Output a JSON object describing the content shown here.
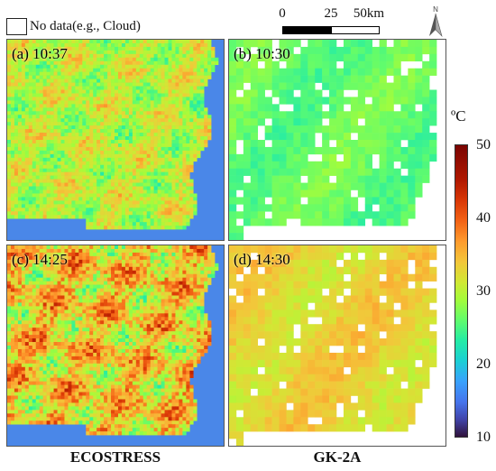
{
  "legend": {
    "nodata_label": "No data(e.g., Cloud)"
  },
  "scale_bar": {
    "labels": [
      "0",
      "25",
      "50km"
    ]
  },
  "panels": [
    {
      "label": "(a) 10:37",
      "sensor": "ECOSTRESS",
      "time": "10:37",
      "mean_temp_c": 29,
      "variability": 4.5
    },
    {
      "label": "(b) 10:30",
      "sensor": "GK-2A",
      "time": "10:30",
      "mean_temp_c": 25,
      "variability": 2.5
    },
    {
      "label": "(c) 14:25",
      "sensor": "ECOSTRESS",
      "time": "14:25",
      "mean_temp_c": 33,
      "variability": 7
    },
    {
      "label": "(d) 14:30",
      "sensor": "GK-2A",
      "time": "14:30",
      "mean_temp_c": 32,
      "variability": 3
    }
  ],
  "columns": [
    "ECOSTRESS",
    "GK-2A"
  ],
  "colorbar": {
    "unit": "ºC",
    "min": 8,
    "max": 50,
    "ticks": [
      "50",
      "40",
      "30",
      "20",
      "10"
    ],
    "colormap": "turbo"
  },
  "colors": {
    "sea": "#4a87e8",
    "nodata": "#ffffff"
  }
}
